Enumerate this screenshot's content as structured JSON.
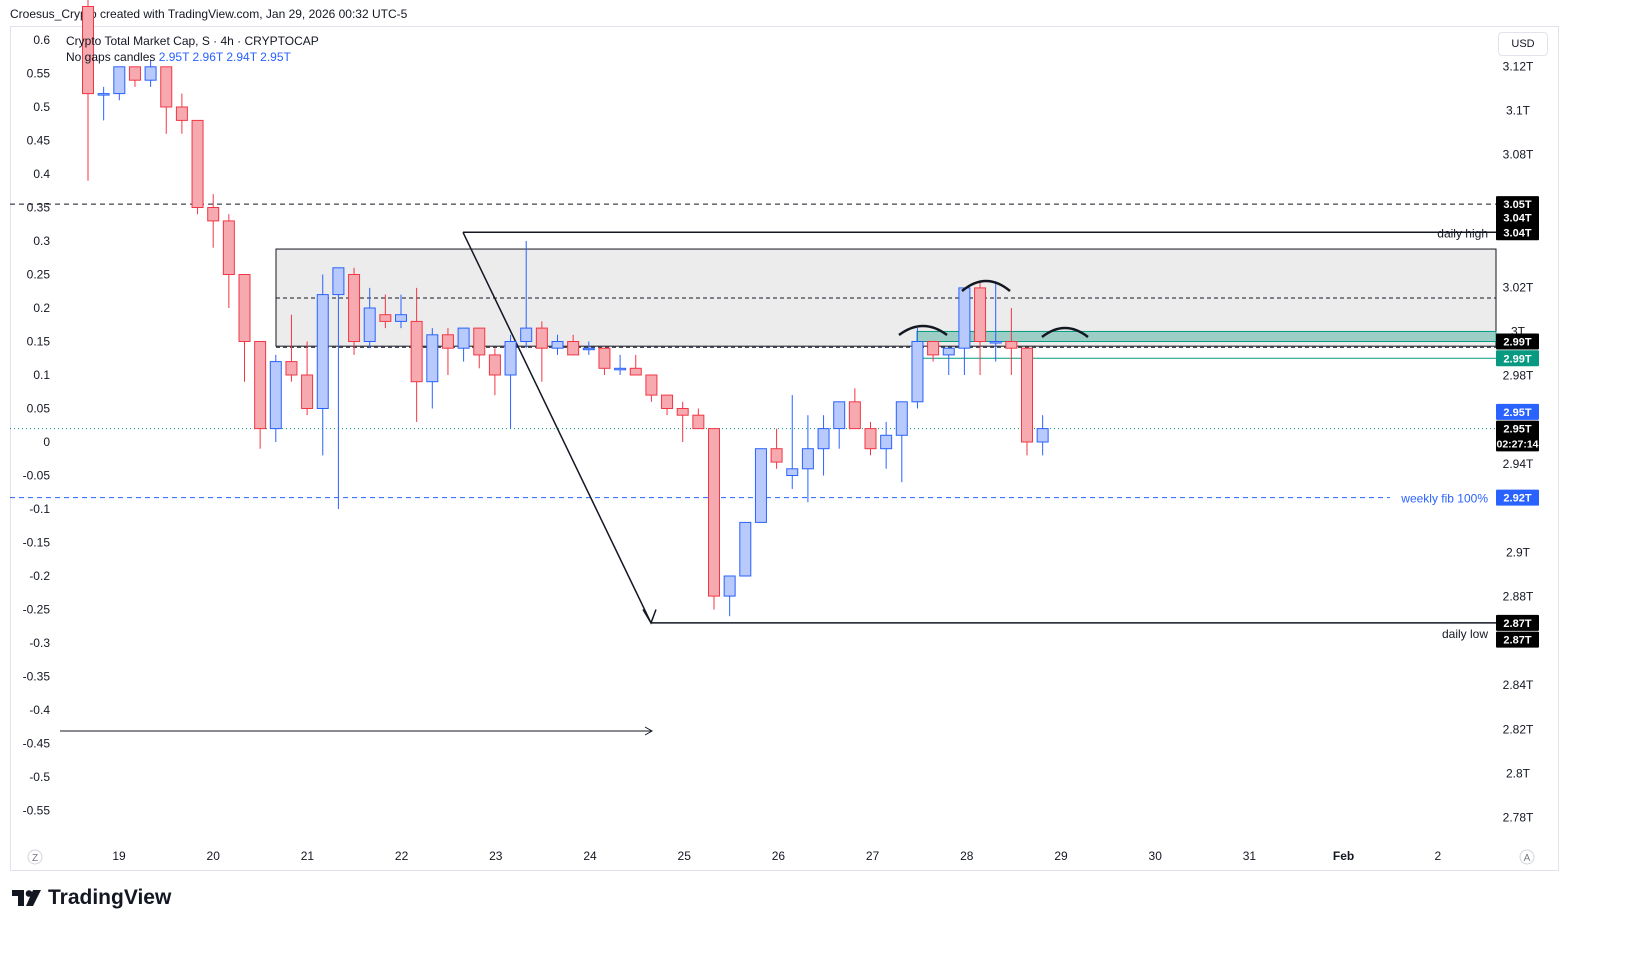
{
  "header": {
    "attribution": "Croesus_Crypto created with TradingView.com, Jan 29, 2026 00:32 UTC-5"
  },
  "legend": {
    "line1": "Crypto Total Market Cap, S · 4h · CRYPTOCAP",
    "line2_label": "No gaps candles",
    "ohlc": "2.95T  2.96T  2.94T  2.95T"
  },
  "currency": "USD",
  "brand": "TradingView",
  "colors": {
    "up": "#2962ff",
    "down": "#f23645",
    "up_fill": "#b8c9fb",
    "down_fill": "#f7a9b0",
    "green": "#089981",
    "zone": "#e0e0e0"
  },
  "chart_data": {
    "type": "candlestick",
    "symbol": "Crypto Total Market Cap",
    "timeframe": "4h",
    "x_labels": [
      "19",
      "20",
      "21",
      "22",
      "23",
      "24",
      "25",
      "26",
      "27",
      "28",
      "29",
      "30",
      "31",
      "Feb",
      "2"
    ],
    "right_axis_ticks": [
      "3.12T",
      "3.1T",
      "3.08T",
      "3.02T",
      "3T",
      "2.98T",
      "2.94T",
      "2.9T",
      "2.88T",
      "2.84T",
      "2.82T",
      "2.8T",
      "2.78T"
    ],
    "left_axis_ticks": [
      "0.6",
      "0.55",
      "0.5",
      "0.45",
      "0.4",
      "0.35",
      "0.3",
      "0.25",
      "0.2",
      "0.15",
      "0.1",
      "0.05",
      "0",
      "-0.05",
      "-0.1",
      "-0.15",
      "-0.2",
      "-0.25",
      "-0.3",
      "-0.35",
      "-0.4",
      "-0.45",
      "-0.5",
      "-0.55"
    ],
    "left_axis_range": [
      -0.55,
      0.6
    ],
    "right_axis_range": [
      2.78,
      3.12
    ],
    "candles_left_units": [
      [
        0.65,
        0.66,
        0.39,
        0.52
      ],
      [
        0.52,
        0.53,
        0.48,
        0.52
      ],
      [
        0.52,
        0.56,
        0.51,
        0.56
      ],
      [
        0.56,
        0.56,
        0.53,
        0.54
      ],
      [
        0.54,
        0.57,
        0.53,
        0.56
      ],
      [
        0.56,
        0.56,
        0.46,
        0.5
      ],
      [
        0.5,
        0.52,
        0.46,
        0.48
      ],
      [
        0.48,
        0.48,
        0.34,
        0.35
      ],
      [
        0.35,
        0.37,
        0.29,
        0.33
      ],
      [
        0.33,
        0.34,
        0.2,
        0.25
      ],
      [
        0.25,
        0.25,
        0.09,
        0.15
      ],
      [
        0.15,
        0.15,
        -0.01,
        0.02
      ],
      [
        0.02,
        0.13,
        0.0,
        0.12
      ],
      [
        0.12,
        0.19,
        0.09,
        0.1
      ],
      [
        0.1,
        0.15,
        0.04,
        0.05
      ],
      [
        0.05,
        0.25,
        -0.02,
        0.22
      ],
      [
        0.22,
        0.26,
        -0.1,
        0.26
      ],
      [
        0.25,
        0.26,
        0.13,
        0.15
      ],
      [
        0.15,
        0.23,
        0.14,
        0.2
      ],
      [
        0.19,
        0.22,
        0.17,
        0.18
      ],
      [
        0.18,
        0.22,
        0.17,
        0.19
      ],
      [
        0.18,
        0.23,
        0.03,
        0.09
      ],
      [
        0.09,
        0.17,
        0.05,
        0.16
      ],
      [
        0.16,
        0.17,
        0.1,
        0.14
      ],
      [
        0.14,
        0.17,
        0.12,
        0.17
      ],
      [
        0.17,
        0.17,
        0.11,
        0.13
      ],
      [
        0.13,
        0.14,
        0.07,
        0.1
      ],
      [
        0.1,
        0.16,
        0.02,
        0.15
      ],
      [
        0.15,
        0.3,
        0.14,
        0.17
      ],
      [
        0.17,
        0.18,
        0.09,
        0.14
      ],
      [
        0.14,
        0.16,
        0.13,
        0.15
      ],
      [
        0.15,
        0.16,
        0.14,
        0.13
      ],
      [
        0.14,
        0.15,
        0.13,
        0.14
      ],
      [
        0.14,
        0.14,
        0.1,
        0.11
      ],
      [
        0.11,
        0.13,
        0.1,
        0.11
      ],
      [
        0.11,
        0.13,
        0.1,
        0.1
      ],
      [
        0.1,
        0.1,
        0.06,
        0.07
      ],
      [
        0.07,
        0.07,
        0.04,
        0.05
      ],
      [
        0.05,
        0.06,
        0.0,
        0.04
      ],
      [
        0.04,
        0.05,
        0.02,
        0.02
      ],
      [
        0.02,
        0.02,
        -0.25,
        -0.23
      ],
      [
        -0.23,
        -0.2,
        -0.26,
        -0.2
      ],
      [
        -0.2,
        -0.12,
        -0.2,
        -0.12
      ],
      [
        -0.12,
        -0.01,
        -0.12,
        -0.01
      ],
      [
        -0.01,
        0.02,
        -0.04,
        -0.03
      ],
      [
        -0.05,
        0.07,
        -0.07,
        -0.04
      ],
      [
        -0.04,
        0.04,
        -0.09,
        -0.01
      ],
      [
        -0.01,
        0.04,
        -0.05,
        0.02
      ],
      [
        0.02,
        0.06,
        -0.01,
        0.06
      ],
      [
        0.06,
        0.08,
        0.02,
        0.02
      ],
      [
        0.02,
        0.03,
        -0.02,
        -0.01
      ],
      [
        -0.01,
        0.03,
        -0.04,
        0.01
      ],
      [
        0.01,
        0.06,
        -0.06,
        0.06
      ],
      [
        0.06,
        0.17,
        0.05,
        0.15
      ],
      [
        0.15,
        0.15,
        0.12,
        0.13
      ],
      [
        0.13,
        0.14,
        0.1,
        0.14
      ],
      [
        0.14,
        0.23,
        0.1,
        0.23
      ],
      [
        0.23,
        0.24,
        0.1,
        0.15
      ],
      [
        0.15,
        0.24,
        0.12,
        0.15
      ],
      [
        0.15,
        0.2,
        0.1,
        0.14
      ],
      [
        0.14,
        0.14,
        -0.02,
        0.0
      ],
      [
        0.0,
        0.04,
        -0.02,
        0.02
      ]
    ],
    "levels": [
      {
        "label": "3.05T",
        "left_value": 0.355,
        "style": "dashed",
        "color": "#131722"
      },
      {
        "label": "daily high",
        "left_value": 0.313,
        "style": "solid",
        "color": "#131722",
        "price": "3.04T"
      },
      {
        "label": "weekly fib 100%",
        "left_value": -0.083,
        "style": "dashed",
        "color": "#2962ff",
        "price": "2.92T"
      },
      {
        "label": "daily low",
        "left_value": -0.27,
        "style": "solid",
        "color": "#131722",
        "price": "2.87T"
      },
      {
        "label": "2.95T",
        "left_value": 0.02,
        "style": "dotted",
        "color": "#089981"
      }
    ],
    "price_tags": [
      {
        "text": "3.05T",
        "left_value": 0.355,
        "bg": "#000000"
      },
      {
        "text": "3.04T",
        "left_value": 0.335,
        "bg": "#000000"
      },
      {
        "text": "3.04T",
        "left_value": 0.313,
        "bg": "#000000"
      },
      {
        "text": "2.99T",
        "left_value": 0.15,
        "bg": "#000000"
      },
      {
        "text": "2.99T",
        "left_value": 0.125,
        "bg": "#089981"
      },
      {
        "text": "2.95T",
        "left_value": 0.045,
        "bg": "#2962ff"
      },
      {
        "text": "2.95T",
        "left_value": 0.02,
        "bg": "#000000"
      },
      {
        "text": "02:27:14",
        "left_value": -0.002,
        "bg": "#000000"
      },
      {
        "text": "2.92T",
        "left_value": -0.083,
        "bg": "#2962ff"
      },
      {
        "text": "2.87T",
        "left_value": -0.27,
        "bg": "#000000"
      },
      {
        "text": "2.87T",
        "left_value": -0.295,
        "bg": "#000000"
      }
    ],
    "zone": {
      "top": 0.288,
      "bottom": 0.143,
      "mid": 0.215
    },
    "grid": false,
    "legend_position": "top-left"
  }
}
